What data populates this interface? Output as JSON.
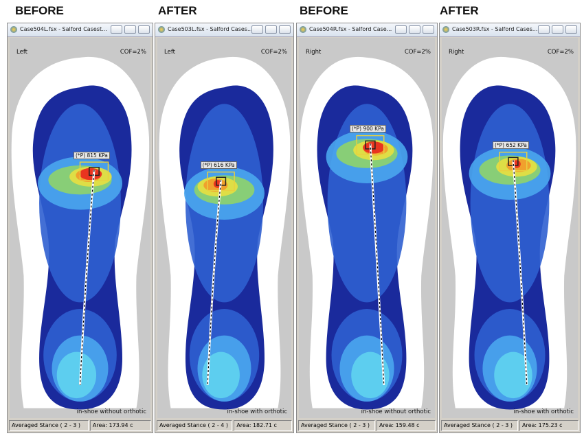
{
  "panels": [
    {
      "heading": "BEFORE",
      "window_title": "Case504L.fsx - Salford Casest...",
      "side": "Left",
      "cof": "COF=2%",
      "peak_label": "(*P) 815 KPa",
      "note": "in-shoe without orthotic",
      "stance": "Averaged Stance ( 2 - 3 )",
      "area": "Area: 173.94 c"
    },
    {
      "heading": "AFTER",
      "window_title": "Case503L.fsx - Salford Cases...",
      "side": "Left",
      "cof": "COF=2%",
      "peak_label": "(*P) 616 KPa",
      "note": "in-shoe with orthotic",
      "stance": "Averaged Stance ( 2 - 4 )",
      "area": "Area: 182.71 c"
    },
    {
      "heading": "BEFORE",
      "window_title": "Case504R.fsx - Salford Case...",
      "side": "Right",
      "cof": "COF=2%",
      "peak_label": "(*P) 900 KPa",
      "note": "in-shoe without orthotic",
      "stance": "Averaged Stance ( 2 - 3 )",
      "area": "Area: 159.48 c"
    },
    {
      "heading": "AFTER",
      "window_title": "Case503R.fsx - Salford Cases...",
      "side": "Right",
      "cof": "COF=2%",
      "peak_label": "(*P) 652 KPa",
      "note": "in-shoe with orthotic",
      "stance": "Averaged Stance ( 2 - 3 )",
      "area": "Area: 175.23 c"
    }
  ]
}
